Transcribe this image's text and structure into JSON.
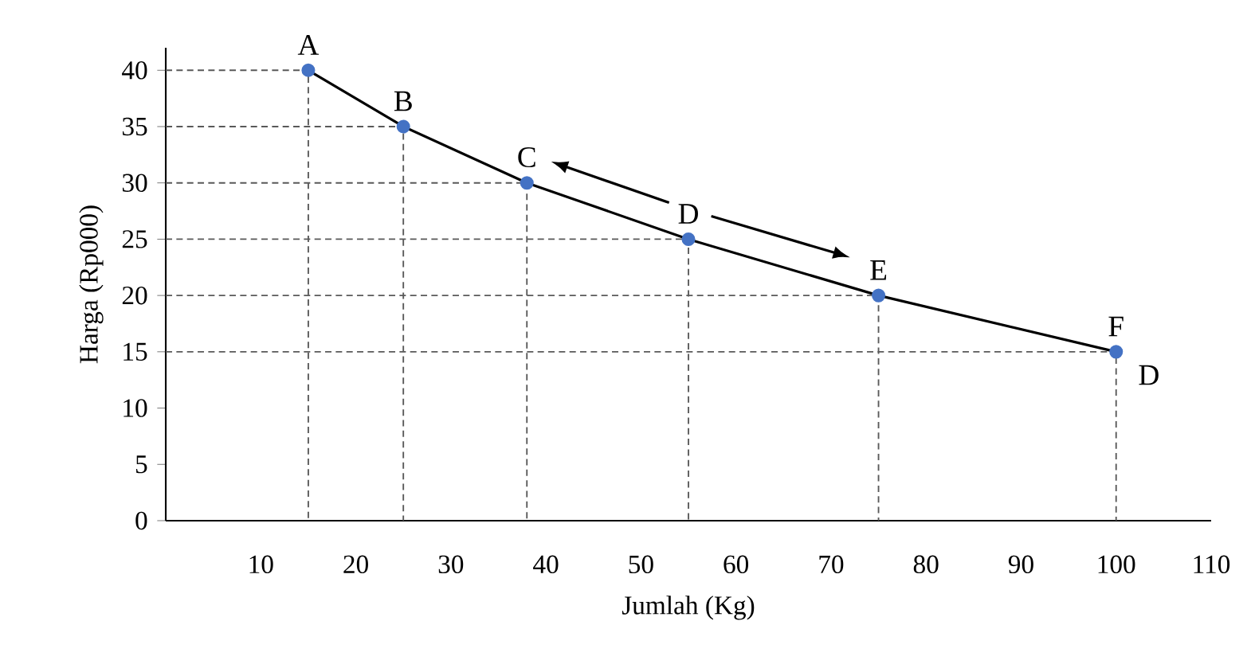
{
  "chart_data": {
    "type": "line",
    "x": [
      15,
      25,
      38,
      55,
      75,
      100
    ],
    "series": [
      {
        "color": "#4472c4",
        "values": [
          40,
          35,
          30,
          25,
          20,
          15
        ]
      },
      {
        "color": "#595959",
        "x": [
          0,
          15,
          15
        ],
        "values": [
          40,
          40,
          0
        ],
        "line_style": "dashed",
        "marker": "none"
      },
      {
        "color": "#595959",
        "x": [
          0,
          25,
          25
        ],
        "values": [
          35,
          35,
          0
        ],
        "line_style": "dashed",
        "marker": "none"
      },
      {
        "color": "#595959",
        "x": [
          0,
          38,
          38
        ],
        "values": [
          30,
          30,
          0
        ],
        "line_style": "dashed",
        "marker": "none"
      },
      {
        "color": "#595959",
        "x": [
          0,
          55,
          55
        ],
        "values": [
          25,
          25,
          0
        ],
        "line_style": "dashed",
        "marker": "none"
      },
      {
        "color": "#595959",
        "x": [
          0,
          75,
          75
        ],
        "values": [
          20,
          20,
          0
        ],
        "line_style": "dashed",
        "marker": "none"
      },
      {
        "color": "#595959",
        "x": [
          0,
          100,
          100
        ],
        "values": [
          15,
          15,
          0
        ],
        "line_style": "dashed",
        "marker": "none"
      }
    ],
    "marker": "circle",
    "line_style": "solid",
    "xlabel": "Jumlah (Kg)",
    "ylabel": "Harga (Rp000)",
    "xlim": [
      0,
      110
    ],
    "ylim": [
      0,
      42
    ],
    "xticks": [
      10,
      20,
      30,
      40,
      50,
      60,
      70,
      80,
      90,
      100,
      110
    ],
    "yticks": [
      0,
      5,
      10,
      15,
      20,
      25,
      30,
      35,
      40
    ],
    "grid": false,
    "annotations": [
      {
        "text": "A",
        "x": 15,
        "y": 40
      },
      {
        "text": "B",
        "x": 25,
        "y": 35
      },
      {
        "text": "C",
        "x": 38,
        "y": 30
      },
      {
        "text": "D",
        "x": 55,
        "y": 25
      },
      {
        "text": "E",
        "x": 75,
        "y": 20
      },
      {
        "text": "F",
        "x": 100,
        "y": 15
      },
      {
        "text": "D",
        "x": 100,
        "y": 15
      }
    ]
  }
}
